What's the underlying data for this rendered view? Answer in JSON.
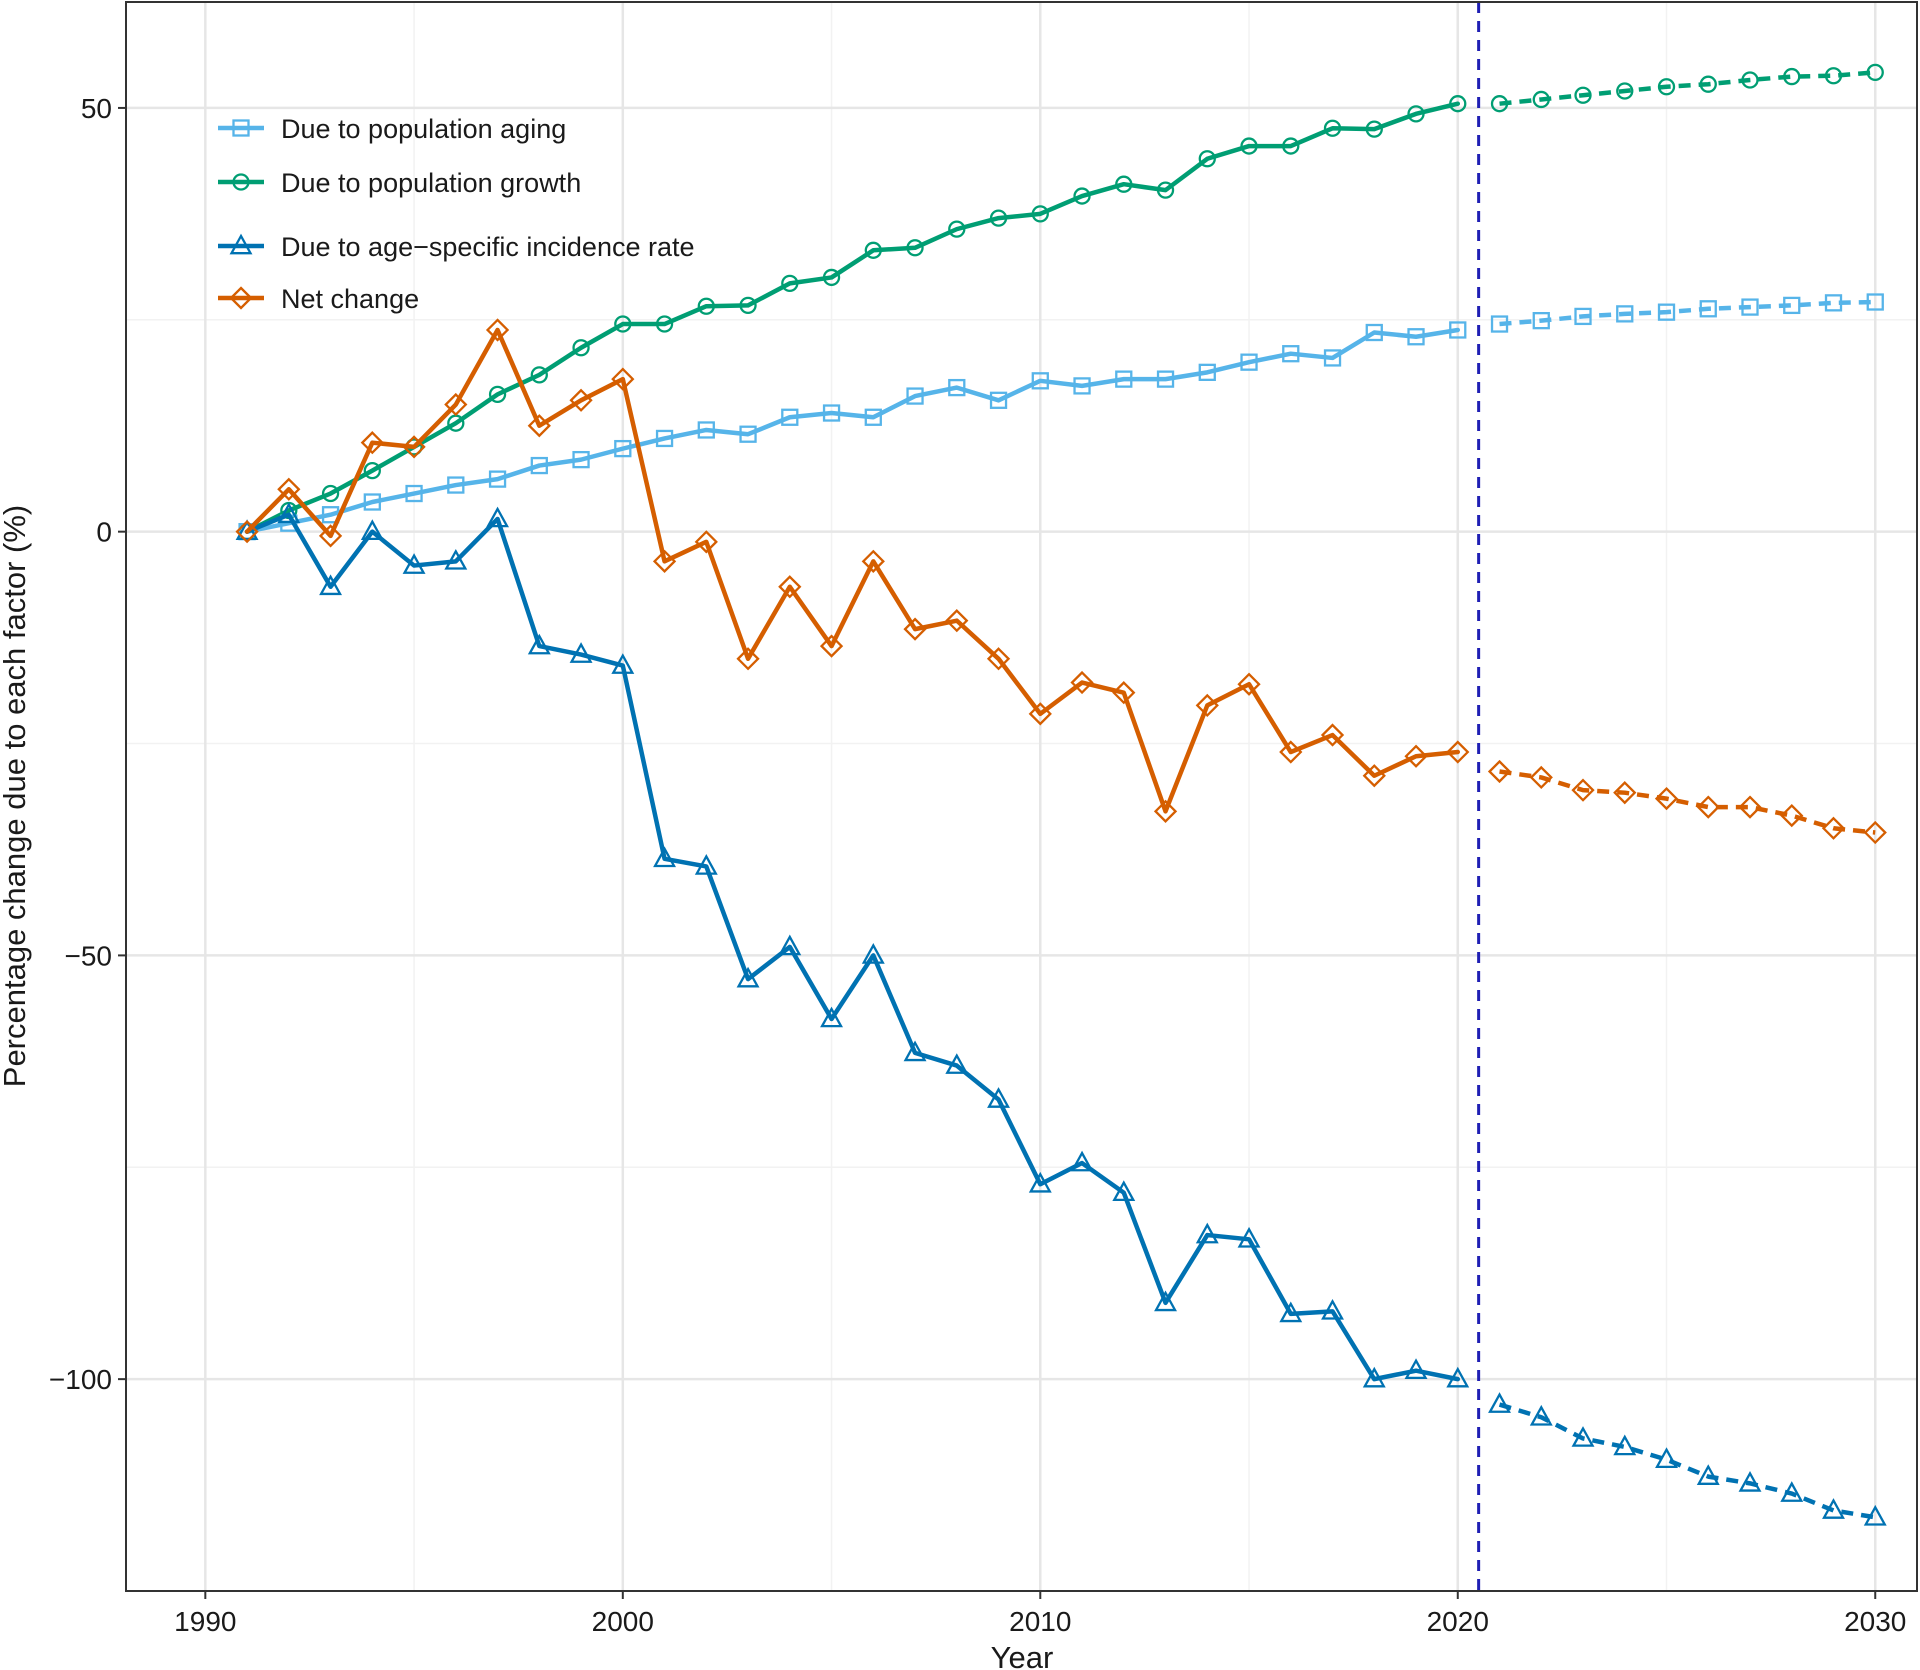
{
  "chart_data": {
    "type": "line",
    "title": "",
    "xlabel": "Year",
    "ylabel": "Percentage change due to each factor (%)",
    "xlim": [
      1988.1,
      2031.0
    ],
    "ylim": [
      -125.0,
      62.5
    ],
    "x_ticks": [
      1990,
      2000,
      2010,
      2020,
      2030
    ],
    "y_ticks": [
      50,
      0,
      -50,
      -100
    ],
    "y_tick_labels": [
      "50",
      "0",
      "−50",
      "−100"
    ],
    "grid": true,
    "legend_position": "top-left",
    "forecast_divider_x": 2020.5,
    "observed_years": [
      1991,
      1992,
      1993,
      1994,
      1995,
      1996,
      1997,
      1998,
      1999,
      2000,
      2001,
      2002,
      2003,
      2004,
      2005,
      2006,
      2007,
      2008,
      2009,
      2010,
      2011,
      2012,
      2013,
      2014,
      2015,
      2016,
      2017,
      2018,
      2019,
      2020
    ],
    "forecast_years": [
      2021,
      2022,
      2023,
      2024,
      2025,
      2026,
      2027,
      2028,
      2029,
      2030
    ],
    "series": [
      {
        "name": "Due to population aging",
        "color": "#56B4E9",
        "marker": "square",
        "observed": [
          0,
          1,
          2,
          3.5,
          4.5,
          5.5,
          6.2,
          7.8,
          8.5,
          9.8,
          11,
          12,
          11.5,
          13.5,
          14,
          13.5,
          16,
          17,
          15.5,
          17.8,
          17.2,
          18,
          18,
          18.8,
          20,
          21,
          20.5,
          23.5,
          23,
          23.8
        ],
        "forecast": [
          24.5,
          24.9,
          25.4,
          25.7,
          25.9,
          26.3,
          26.5,
          26.7,
          27,
          27.1
        ]
      },
      {
        "name": "Due to population growth",
        "color": "#009E73",
        "marker": "circle",
        "observed": [
          0,
          2.5,
          4.5,
          7.2,
          10,
          12.8,
          16.2,
          18.5,
          21.7,
          24.5,
          24.5,
          26.6,
          26.7,
          29.3,
          30,
          33.2,
          33.5,
          35.7,
          37,
          37.5,
          39.6,
          41,
          40.3,
          44,
          45.5,
          45.5,
          47.6,
          47.5,
          49.3,
          50.5
        ],
        "forecast": [
          50.5,
          51,
          51.5,
          52,
          52.5,
          52.8,
          53.3,
          53.7,
          53.8,
          54.2
        ]
      },
      {
        "name": "Due to age−specific incidence rate",
        "color": "#0072B2",
        "marker": "triangle",
        "observed": [
          0,
          2,
          -6.5,
          0,
          -4,
          -3.5,
          1.5,
          -13.5,
          -14.5,
          -15.8,
          -38.6,
          -39.5,
          -52.8,
          -49,
          -57.5,
          -50,
          -61.5,
          -63,
          -67,
          -77,
          -74.5,
          -78,
          -91,
          -83,
          -83.5,
          -92.3,
          -92,
          -100,
          -99,
          -100
        ],
        "forecast": [
          -103,
          -104.5,
          -107,
          -108,
          -109.5,
          -111.5,
          -112.3,
          -113.5,
          -115.5,
          -116.3
        ]
      },
      {
        "name": "Net change",
        "color": "#D55E00",
        "marker": "diamond",
        "observed": [
          0,
          5,
          -0.5,
          10.5,
          10,
          15,
          23.8,
          12.5,
          15.5,
          18,
          -3.5,
          -1.2,
          -15,
          -6.5,
          -13.5,
          -3.5,
          -11.5,
          -10.5,
          -15,
          -21.5,
          -17.8,
          -19,
          -33,
          -20.5,
          -18,
          -26,
          -24,
          -28.8,
          -26.5,
          -26
        ],
        "forecast": [
          -28.3,
          -29,
          -30.5,
          -30.8,
          -31.5,
          -32.5,
          -32.5,
          -33.5,
          -35,
          -35.5
        ]
      }
    ]
  }
}
